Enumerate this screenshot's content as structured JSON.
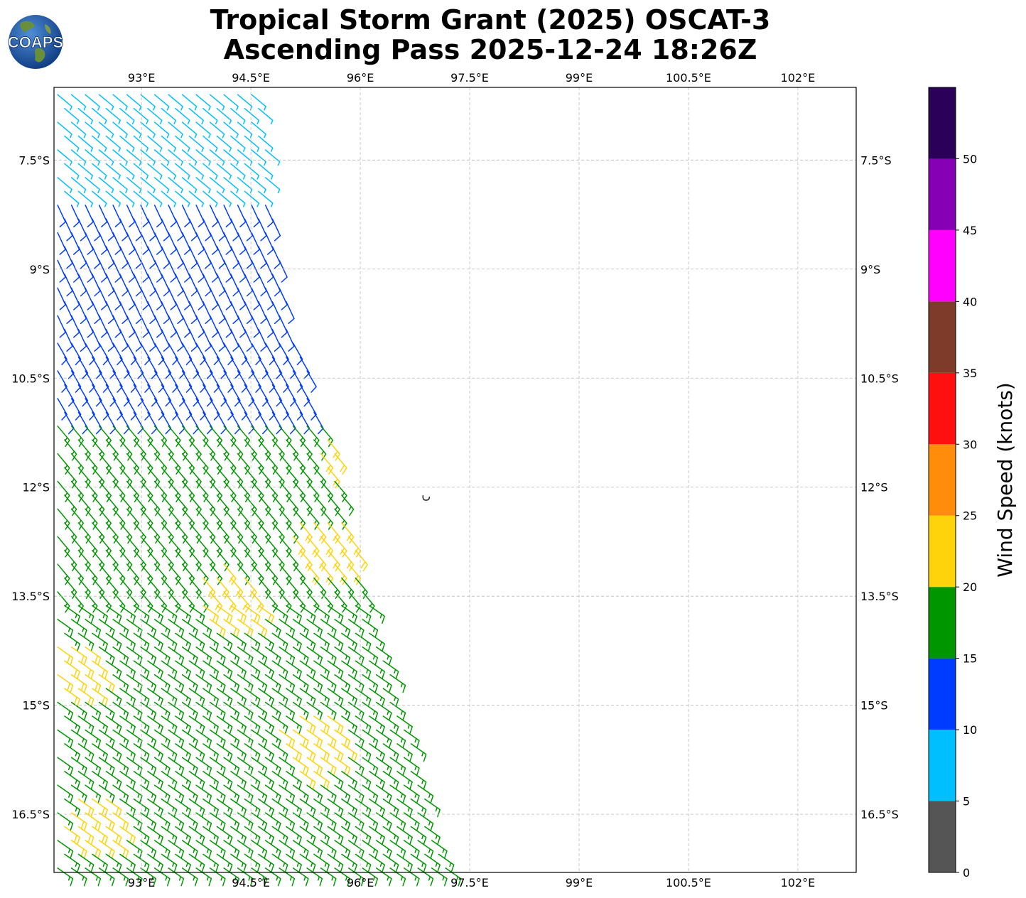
{
  "header": {
    "title_line1": "Tropical Storm Grant (2025) OSCAT-3",
    "title_line2": "Ascending Pass 2025-12-24 18:26Z",
    "logo_text": "COAPS"
  },
  "colors": {
    "grid": "#bbbbbb",
    "frame": "#000000",
    "island": "#333333"
  },
  "chart_data": {
    "type": "wind-barb map",
    "xlabel": "",
    "ylabel": "",
    "lon_range": [
      91.8,
      102.8
    ],
    "lat_range": [
      -6.5,
      -17.3
    ],
    "lon_ticks": [
      93,
      94.5,
      96,
      97.5,
      99,
      100.5,
      102
    ],
    "lon_tick_labels": [
      "93°E",
      "94.5°E",
      "96°E",
      "97.5°E",
      "99°E",
      "100.5°E",
      "102°E"
    ],
    "lat_ticks": [
      -7.5,
      -9,
      -10.5,
      -12,
      -13.5,
      -15,
      -16.5
    ],
    "lat_tick_labels": [
      "7.5°S",
      "9°S",
      "10.5°S",
      "12°S",
      "13.5°S",
      "15°S",
      "16.5°S"
    ],
    "grid": true,
    "swath": {
      "west_edge_lon": 91.8,
      "east_edge": [
        {
          "lat": -6.5,
          "lon": 94.6
        },
        {
          "lat": -9.5,
          "lon": 95.0
        },
        {
          "lat": -11.3,
          "lon": 95.6
        },
        {
          "lat": -13.5,
          "lon": 96.1
        },
        {
          "lat": -15.5,
          "lon": 96.7
        },
        {
          "lat": -17.3,
          "lon": 97.2
        }
      ]
    },
    "wind_regions": [
      {
        "lat_from": -6.5,
        "lat_to": -8.0,
        "speed_kt": 7,
        "direction_deg": 130
      },
      {
        "lat_from": -8.0,
        "lat_to": -10.0,
        "speed_kt": 12,
        "direction_deg": 155
      },
      {
        "lat_from": -10.0,
        "lat_to": -11.0,
        "speed_kt": 14,
        "direction_deg": 150
      },
      {
        "lat_from": -11.0,
        "lat_to": -13.5,
        "speed_kt": 18,
        "direction_deg": 140
      },
      {
        "lat_from": -13.5,
        "lat_to": -17.3,
        "speed_kt": 18,
        "direction_deg": 125
      }
    ],
    "yellow_zones": [
      {
        "lat": -11.5,
        "lon": 95.9,
        "speed_kt": 22
      },
      {
        "lat": -12.8,
        "lon": 95.5,
        "speed_kt": 22
      },
      {
        "lat": -13.5,
        "lon": 94.2,
        "speed_kt": 22
      },
      {
        "lat": -14.5,
        "lon": 92.0,
        "speed_kt": 22
      },
      {
        "lat": -16.6,
        "lon": 92.3,
        "speed_kt": 22
      },
      {
        "lat": -15.5,
        "lon": 95.3,
        "speed_kt": 22
      }
    ],
    "island": {
      "lat": -12.15,
      "lon": 96.9,
      "name": ""
    },
    "colorbar": {
      "label": "Wind Speed (knots)",
      "boundaries": [
        0,
        5,
        10,
        15,
        20,
        25,
        30,
        35,
        40,
        45,
        50,
        55
      ],
      "tick_values": [
        0,
        5,
        10,
        15,
        20,
        25,
        30,
        35,
        40,
        45,
        50
      ],
      "tick_labels": [
        "0",
        "5",
        "10",
        "15",
        "20",
        "25",
        "30",
        "35",
        "40",
        "45",
        "50"
      ],
      "colors": [
        "#555555",
        "#00bfff",
        "#003cff",
        "#009600",
        "#ffd30c",
        "#ff8c0a",
        "#ff1010",
        "#7f3b2a",
        "#ff00ff",
        "#8600b5",
        "#2b0058"
      ]
    }
  }
}
